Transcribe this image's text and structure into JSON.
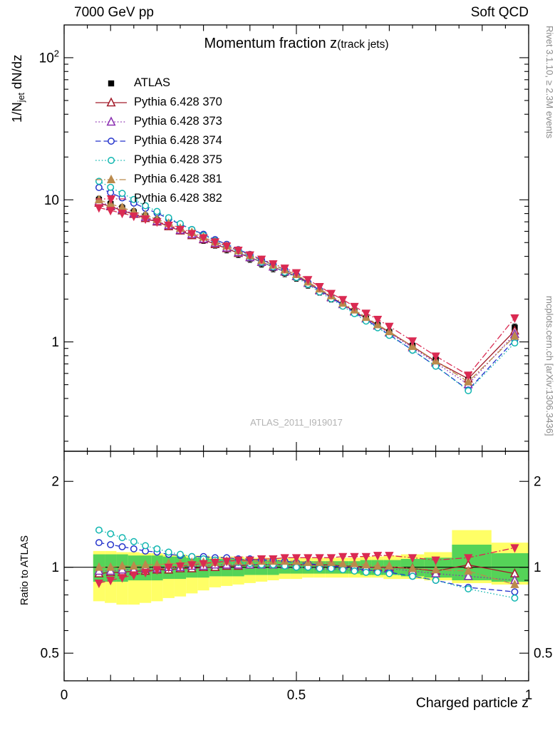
{
  "header": {
    "left": "7000 GeV pp",
    "right": "Soft QCD"
  },
  "side_notes": {
    "top": "Rivet 3.1.10, ≥ 2.3M events",
    "bottom": "mcplots.cern.ch [arXiv:1306.3436]"
  },
  "title": {
    "main": "Momentum fraction z",
    "paren": "(track jets)"
  },
  "watermark": "ATLAS_2011_I919017",
  "axes": {
    "x_label": "Charged particle z",
    "ylabel_pre": "1/N",
    "ylabel_sub": "jet",
    "ylabel_post": "dN/dz",
    "ratio_ylabel": "Ratio to ATLAS"
  },
  "chart_data": {
    "type": "line",
    "title": "Momentum fraction z (track jets)",
    "xlabel": "Charged particle z",
    "ylabel": "1/N_jet dN/dz",
    "y_scale": "log",
    "xlim": [
      0,
      1
    ],
    "main_ylim": [
      0.17,
      170
    ],
    "ratio_ylim": [
      0.4,
      2.55
    ],
    "legend_position": "top-left",
    "grid": false,
    "x": [
      0.075,
      0.1,
      0.125,
      0.15,
      0.175,
      0.2,
      0.225,
      0.25,
      0.275,
      0.3,
      0.325,
      0.35,
      0.375,
      0.4,
      0.425,
      0.45,
      0.475,
      0.5,
      0.525,
      0.55,
      0.575,
      0.6,
      0.625,
      0.65,
      0.675,
      0.7,
      0.75,
      0.8,
      0.87,
      0.97
    ],
    "reference": {
      "name": "ATLAS",
      "color": "#000000",
      "marker": "square-filled",
      "values": [
        10.0,
        9.35,
        8.74,
        8.17,
        7.64,
        7.14,
        6.62,
        6.12,
        5.67,
        5.25,
        4.86,
        4.5,
        4.17,
        3.86,
        3.57,
        3.31,
        3.06,
        2.84,
        2.54,
        2.27,
        2.03,
        1.82,
        1.63,
        1.46,
        1.31,
        1.17,
        0.94,
        0.75,
        0.54,
        1.26
      ]
    },
    "series": [
      {
        "name": "Pythia 6.428 370",
        "color": "#a21c2a",
        "line": "solid",
        "marker": "triangle-open",
        "ratio": [
          0.95,
          0.96,
          0.96,
          0.97,
          0.97,
          0.98,
          0.98,
          0.99,
          0.99,
          1.0,
          1.0,
          1.01,
          1.01,
          1.02,
          1.02,
          1.02,
          1.02,
          1.02,
          1.02,
          1.02,
          1.02,
          1.01,
          1.01,
          1.0,
          1.0,
          1.0,
          0.99,
          0.97,
          1.02,
          0.95
        ]
      },
      {
        "name": "Pythia 6.428 373",
        "color": "#8a2fb0",
        "line": "dotted",
        "marker": "triangle-open",
        "ratio": [
          0.97,
          0.97,
          0.98,
          0.98,
          0.99,
          0.99,
          1.0,
          1.0,
          1.01,
          1.01,
          1.02,
          1.02,
          1.02,
          1.02,
          1.02,
          1.02,
          1.02,
          1.02,
          1.02,
          1.01,
          1.01,
          1.01,
          1.0,
          1.0,
          0.99,
          0.99,
          0.97,
          0.95,
          0.93,
          0.9
        ]
      },
      {
        "name": "Pythia 6.428 374",
        "color": "#2433cc",
        "line": "dashed",
        "marker": "circle-open",
        "ratio": [
          1.22,
          1.2,
          1.18,
          1.16,
          1.14,
          1.13,
          1.11,
          1.1,
          1.09,
          1.09,
          1.08,
          1.08,
          1.07,
          1.07,
          1.06,
          1.06,
          1.05,
          1.04,
          1.03,
          1.02,
          1.01,
          1.0,
          0.99,
          0.98,
          0.97,
          0.96,
          0.93,
          0.9,
          0.85,
          0.82
        ]
      },
      {
        "name": "Pythia 6.428 375",
        "color": "#10b6b0",
        "line": "dotted",
        "marker": "circle-open",
        "ratio": [
          1.35,
          1.31,
          1.27,
          1.23,
          1.19,
          1.16,
          1.13,
          1.11,
          1.09,
          1.07,
          1.06,
          1.05,
          1.04,
          1.03,
          1.02,
          1.02,
          1.01,
          1.0,
          1.0,
          0.99,
          0.99,
          0.98,
          0.97,
          0.96,
          0.96,
          0.95,
          0.93,
          0.9,
          0.84,
          0.78
        ]
      },
      {
        "name": "Pythia 6.428 381",
        "color": "#bb8a4c",
        "line": "dashdot",
        "marker": "triangle-filled",
        "ratio": [
          1.0,
          1.0,
          1.01,
          1.01,
          1.02,
          1.02,
          1.03,
          1.03,
          1.04,
          1.04,
          1.04,
          1.05,
          1.05,
          1.05,
          1.05,
          1.05,
          1.05,
          1.05,
          1.04,
          1.04,
          1.04,
          1.03,
          1.03,
          1.02,
          1.01,
          1.01,
          0.99,
          0.98,
          0.97,
          0.87
        ]
      },
      {
        "name": "Pythia 6.428 382",
        "color": "#da2a52",
        "line": "dashdot",
        "marker": "triangle-down-filled",
        "ratio": [
          0.88,
          0.9,
          0.92,
          0.94,
          0.96,
          0.98,
          1.0,
          1.01,
          1.02,
          1.03,
          1.04,
          1.05,
          1.06,
          1.06,
          1.07,
          1.07,
          1.08,
          1.08,
          1.08,
          1.08,
          1.08,
          1.09,
          1.09,
          1.09,
          1.1,
          1.1,
          1.08,
          1.06,
          1.08,
          1.17
        ]
      }
    ],
    "bands": {
      "yellow": {
        "color": "#ffff66",
        "lo": [
          0.76,
          0.75,
          0.74,
          0.74,
          0.75,
          0.76,
          0.78,
          0.79,
          0.81,
          0.83,
          0.85,
          0.86,
          0.87,
          0.88,
          0.89,
          0.9,
          0.91,
          0.91,
          0.92,
          0.92,
          0.92,
          0.92,
          0.92,
          0.92,
          0.92,
          0.91,
          0.91,
          0.9,
          0.88,
          0.87
        ],
        "hi": [
          1.14,
          1.14,
          1.13,
          1.13,
          1.12,
          1.12,
          1.11,
          1.11,
          1.1,
          1.1,
          1.09,
          1.09,
          1.09,
          1.08,
          1.08,
          1.08,
          1.08,
          1.08,
          1.08,
          1.08,
          1.08,
          1.08,
          1.08,
          1.09,
          1.09,
          1.1,
          1.11,
          1.13,
          1.35,
          1.22
        ]
      },
      "green": {
        "color": "#55d358",
        "lo": [
          0.89,
          0.89,
          0.89,
          0.9,
          0.9,
          0.9,
          0.91,
          0.91,
          0.92,
          0.92,
          0.93,
          0.93,
          0.93,
          0.94,
          0.94,
          0.94,
          0.95,
          0.95,
          0.95,
          0.95,
          0.95,
          0.95,
          0.95,
          0.94,
          0.94,
          0.94,
          0.93,
          0.92,
          0.9,
          0.89
        ],
        "hi": [
          1.11,
          1.11,
          1.11,
          1.1,
          1.1,
          1.1,
          1.09,
          1.09,
          1.08,
          1.08,
          1.07,
          1.07,
          1.07,
          1.06,
          1.06,
          1.06,
          1.05,
          1.05,
          1.05,
          1.05,
          1.05,
          1.05,
          1.05,
          1.06,
          1.06,
          1.06,
          1.07,
          1.08,
          1.2,
          1.12
        ]
      }
    },
    "main_yticks": [
      {
        "v": 1,
        "label": "1"
      },
      {
        "v": 10,
        "label": "10"
      },
      {
        "v": 100,
        "label": "10",
        "sup": "2"
      }
    ],
    "ratio_yticks": [
      {
        "v": 0.5,
        "label": "0.5"
      },
      {
        "v": 1,
        "label": "1"
      },
      {
        "v": 2,
        "label": "2"
      }
    ],
    "xticks": [
      {
        "v": 0,
        "label": "0"
      },
      {
        "v": 0.5,
        "label": "0.5"
      },
      {
        "v": 1,
        "label": "1"
      }
    ]
  }
}
